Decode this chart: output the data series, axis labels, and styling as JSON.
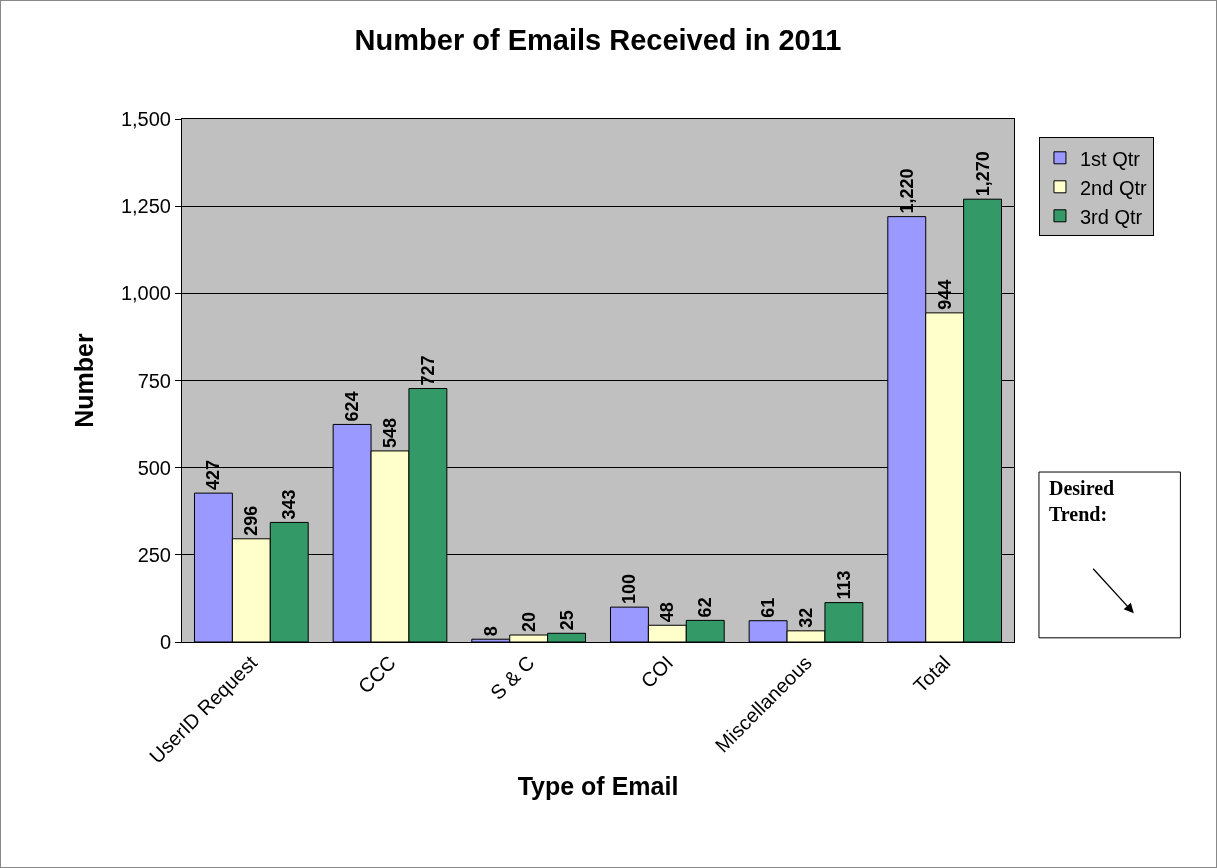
{
  "chart_data": {
    "type": "bar",
    "title": "Number of Emails Received in 2011",
    "xlabel": "Type of Email",
    "ylabel": "Number",
    "categories": [
      "UserID Request",
      "CCC",
      "S & C",
      "COI",
      "Miscellaneous",
      "Total"
    ],
    "series": [
      {
        "name": "1st Qtr",
        "color": "#9999ff",
        "values": [
          427,
          624,
          8,
          100,
          61,
          1220
        ],
        "value_labels": [
          "427",
          "624",
          "8",
          "100",
          "61",
          "1,220"
        ]
      },
      {
        "name": "2nd Qtr",
        "color": "#ffffcc",
        "values": [
          296,
          548,
          20,
          48,
          32,
          944
        ],
        "value_labels": [
          "296",
          "548",
          "20",
          "48",
          "32",
          "944"
        ]
      },
      {
        "name": "3rd Qtr",
        "color": "#339966",
        "values": [
          343,
          727,
          25,
          62,
          113,
          1270
        ],
        "value_labels": [
          "343",
          "727",
          "25",
          "62",
          "113",
          "1,270"
        ]
      }
    ],
    "ylim": [
      0,
      1500
    ],
    "yticks": [
      0,
      {
        "value": 250,
        "label": "250"
      },
      {
        "value": 500,
        "label": "500"
      },
      {
        "value": 750,
        "label": "750"
      },
      {
        "value": 1000,
        "label": "1,000"
      },
      {
        "value": 1250,
        "label": "1,250"
      },
      {
        "value": 1500,
        "label": "1,500"
      }
    ],
    "grid": "y",
    "legend": "top right",
    "annotations": [
      "Desired Trend:"
    ]
  }
}
